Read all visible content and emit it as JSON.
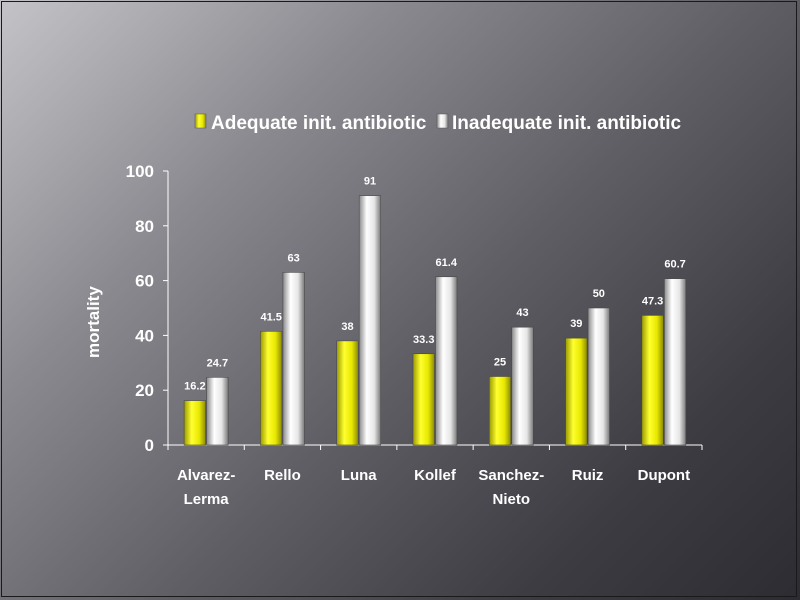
{
  "chart_data": {
    "type": "bar",
    "categories": [
      [
        "Alvarez-",
        "Lerma"
      ],
      [
        "Rello"
      ],
      [
        "Luna"
      ],
      [
        "Kollef"
      ],
      [
        "Sanchez-",
        "Nieto"
      ],
      [
        "Ruiz"
      ],
      [
        "Dupont"
      ]
    ],
    "series": [
      {
        "name": "Adequate init. antibiotic",
        "values": [
          16.2,
          41.5,
          38,
          33.3,
          25,
          39,
          47.3
        ],
        "color": "#e8e800"
      },
      {
        "name": "Inadequate init. antibiotic",
        "values": [
          24.7,
          63,
          91,
          61.4,
          43,
          50,
          60.7
        ],
        "color": "#f2f2f2"
      }
    ],
    "value_labels": [
      [
        "16.2",
        "41.5",
        "38",
        "33.3",
        "25",
        "39",
        "47.3"
      ],
      [
        "24.7",
        "63",
        "91",
        "61.4",
        "43",
        "50",
        "60.7"
      ]
    ],
    "ylabel": "mortality",
    "ylim": [
      0,
      100
    ],
    "yticks": [
      "0",
      "20",
      "40",
      "60",
      "80",
      "100"
    ],
    "legend_position": "top",
    "grid": false
  }
}
